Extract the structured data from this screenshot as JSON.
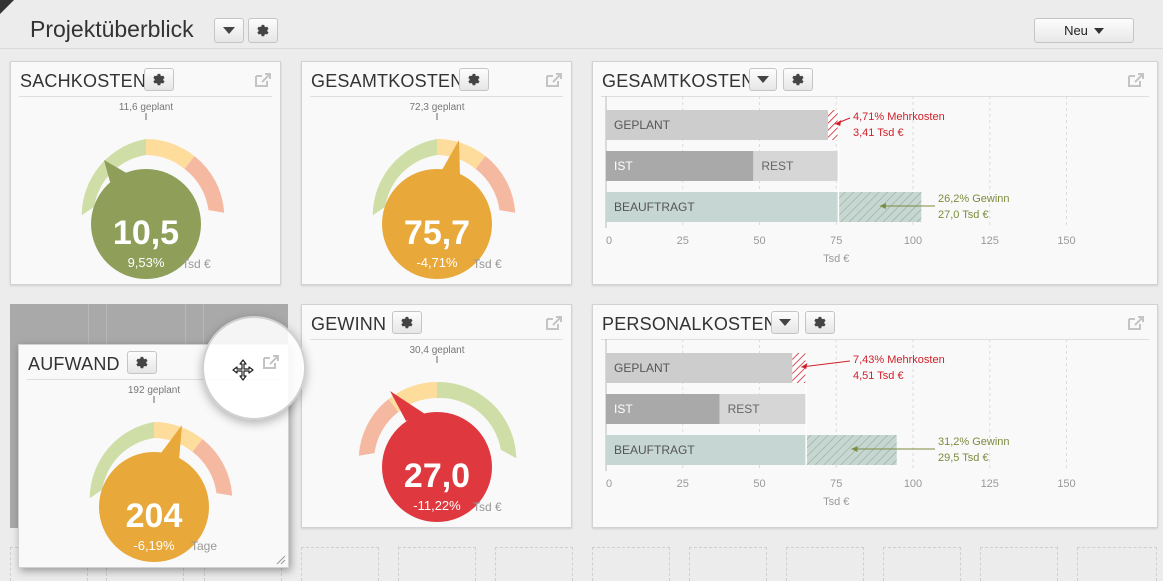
{
  "header": {
    "title": "Projektüberblick",
    "new_button": "Neu"
  },
  "icons": {
    "gear": "gear-icon",
    "caret": "caret-down-icon",
    "external": "external-link-icon",
    "move": "move-cursor-icon"
  },
  "colors": {
    "green": "#8f9f5a",
    "orange": "#e8a83a",
    "red": "#e0383f",
    "arc_green": "#cfdea6",
    "arc_yellow": "#fddc9c",
    "arc_salmon": "#f5b9a2",
    "bar_geplant": "#cdcdcd",
    "bar_ist": "#a9a9a9",
    "bar_beauftragt": "#c5d6d3",
    "text_red": "#d0202a",
    "text_olive": "#7b8c3f"
  },
  "widgets": {
    "sachkosten": {
      "title": "SACHKOSTEN",
      "planned": "11,6 geplant",
      "value": "10,5",
      "percent": "9,53%",
      "unit": "Tsd €"
    },
    "gesamtkosten_gauge": {
      "title": "GESAMTKOSTEN",
      "planned": "72,3 geplant",
      "value": "75,7",
      "percent": "-4,71%",
      "unit": "Tsd €"
    },
    "aufwand": {
      "title": "AUFWAND",
      "planned": "192 geplant",
      "value": "204",
      "percent": "-6,19%",
      "unit": "Tage"
    },
    "gewinn": {
      "title": "GEWINN",
      "planned": "30,4 geplant",
      "value": "27,0",
      "percent": "-11,22%",
      "unit": "Tsd €"
    },
    "gesamtkosten_bar": {
      "title": "GESAMTKOSTEN",
      "bar_labels": {
        "geplant": "GEPLANT",
        "ist": "IST",
        "rest": "REST",
        "beauftragt": "BEAUFTRAGT"
      },
      "annot_red_1": "4,71% Mehrkosten",
      "annot_red_2": "3,41 Tsd €",
      "annot_green_1": "26,2% Gewinn",
      "annot_green_2": "27,0 Tsd €",
      "ticks": [
        "0",
        "25",
        "50",
        "75",
        "100",
        "125",
        "150"
      ],
      "unit": "Tsd €"
    },
    "personalkosten_bar": {
      "title": "PERSONALKOSTEN",
      "bar_labels": {
        "geplant": "GEPLANT",
        "ist": "IST",
        "rest": "REST",
        "beauftragt": "BEAUFTRAGT"
      },
      "annot_red_1": "7,43% Mehrkosten",
      "annot_red_2": "4,51 Tsd €",
      "annot_green_1": "31,2% Gewinn",
      "annot_green_2": "29,5 Tsd €",
      "ticks": [
        "0",
        "25",
        "50",
        "75",
        "100",
        "125",
        "150"
      ],
      "unit": "Tsd €"
    }
  },
  "chart_data": [
    {
      "type": "bar",
      "title": "GESAMTKOSTEN",
      "categories": [
        "GEPLANT",
        "IST",
        "BEAUFTRAGT"
      ],
      "values": {
        "geplant": 72.3,
        "ist": 48,
        "ist_plus_rest": 75.7,
        "beauftragt": 102.7
      },
      "xlim": [
        0,
        150
      ],
      "ticks": [
        0,
        25,
        50,
        75,
        100,
        125,
        150
      ],
      "xlabel": "Tsd €"
    },
    {
      "type": "bar",
      "title": "PERSONALKOSTEN",
      "categories": [
        "GEPLANT",
        "IST",
        "BEAUFTRAGT"
      ],
      "values": {
        "geplant": 60.7,
        "ist": 37,
        "ist_plus_rest": 65.2,
        "beauftragt": 94.7
      },
      "xlim": [
        0,
        150
      ],
      "ticks": [
        0,
        25,
        50,
        75,
        100,
        125,
        150
      ],
      "xlabel": "Tsd €"
    }
  ]
}
